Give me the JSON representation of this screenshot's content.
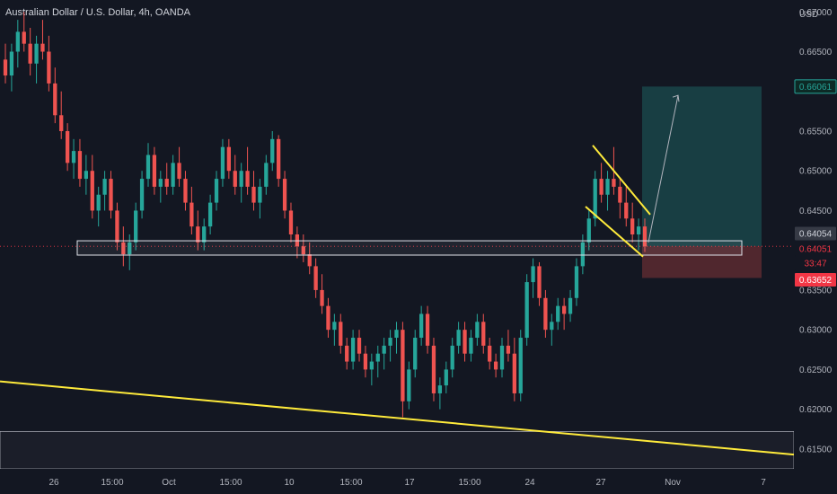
{
  "chart_data": {
    "type": "candlestick",
    "title": "Australian Dollar / U.S. Dollar, 4h, OANDA",
    "currency_label": "USD",
    "y_range": [
      0.6125,
      0.6715
    ],
    "y_ticks": [
      "0.67000",
      "0.66500",
      "0.65500",
      "0.65000",
      "0.64500",
      "0.63500",
      "0.63000",
      "0.62500",
      "0.62000",
      "0.61500"
    ],
    "x_ticks": [
      "26",
      "15:00",
      "Oct",
      "15:00",
      "10",
      "15:00",
      "17",
      "15:00",
      "24",
      "27",
      "Nov",
      "7"
    ],
    "price_badges": [
      {
        "label": "0.66061",
        "kind": "target",
        "color": "#26a69a"
      },
      {
        "label": "0.64054",
        "kind": "last-close",
        "color": "#d1d4dc"
      },
      {
        "label": "0.64051",
        "kind": "current",
        "color": "#f23645"
      },
      {
        "label": "33:47",
        "kind": "countdown",
        "color": "#f23645"
      },
      {
        "label": "0.63652",
        "kind": "stop",
        "color": "#f23645"
      }
    ],
    "colors": {
      "up": "#26a69a",
      "down": "#ef5350",
      "trendline": "#ffeb3b",
      "background": "#131722"
    },
    "annotations": {
      "support_zone": {
        "top": 0.6412,
        "bottom": 0.6394
      },
      "lower_zone": {
        "top": 0.6172,
        "bottom": 0.6125
      },
      "trendline": {
        "start": 0.6235,
        "end": 0.6143
      },
      "falling_wedge": {
        "upper": [
          0.6532,
          0.6445
        ],
        "lower": [
          0.6455,
          0.6392
        ]
      },
      "long_position": {
        "entry": 0.6405,
        "target": 0.66061,
        "stop": 0.63652
      }
    },
    "candles": [
      [
        0.664,
        0.666,
        0.661,
        0.662
      ],
      [
        0.662,
        0.666,
        0.66,
        0.665
      ],
      [
        0.665,
        0.669,
        0.663,
        0.6675
      ],
      [
        0.6675,
        0.67,
        0.665,
        0.666
      ],
      [
        0.666,
        0.668,
        0.662,
        0.6635
      ],
      [
        0.6635,
        0.667,
        0.661,
        0.666
      ],
      [
        0.666,
        0.669,
        0.664,
        0.665
      ],
      [
        0.665,
        0.667,
        0.66,
        0.661
      ],
      [
        0.661,
        0.663,
        0.656,
        0.657
      ],
      [
        0.657,
        0.66,
        0.654,
        0.655
      ],
      [
        0.655,
        0.656,
        0.65,
        0.651
      ],
      [
        0.651,
        0.654,
        0.649,
        0.6525
      ],
      [
        0.6525,
        0.654,
        0.648,
        0.649
      ],
      [
        0.649,
        0.652,
        0.647,
        0.65
      ],
      [
        0.65,
        0.652,
        0.644,
        0.645
      ],
      [
        0.645,
        0.648,
        0.643,
        0.647
      ],
      [
        0.647,
        0.65,
        0.645,
        0.649
      ],
      [
        0.649,
        0.65,
        0.644,
        0.645
      ],
      [
        0.645,
        0.646,
        0.64,
        0.641
      ],
      [
        0.641,
        0.643,
        0.638,
        0.6395
      ],
      [
        0.6395,
        0.642,
        0.6375,
        0.641
      ],
      [
        0.641,
        0.646,
        0.64,
        0.645
      ],
      [
        0.645,
        0.65,
        0.644,
        0.649
      ],
      [
        0.649,
        0.6535,
        0.648,
        0.652
      ],
      [
        0.652,
        0.653,
        0.647,
        0.648
      ],
      [
        0.648,
        0.65,
        0.646,
        0.649
      ],
      [
        0.649,
        0.651,
        0.647,
        0.648
      ],
      [
        0.648,
        0.652,
        0.647,
        0.651
      ],
      [
        0.651,
        0.653,
        0.648,
        0.649
      ],
      [
        0.649,
        0.65,
        0.645,
        0.646
      ],
      [
        0.646,
        0.648,
        0.642,
        0.643
      ],
      [
        0.643,
        0.645,
        0.64,
        0.641
      ],
      [
        0.641,
        0.644,
        0.64,
        0.643
      ],
      [
        0.643,
        0.647,
        0.642,
        0.646
      ],
      [
        0.646,
        0.65,
        0.645,
        0.649
      ],
      [
        0.649,
        0.654,
        0.648,
        0.653
      ],
      [
        0.653,
        0.654,
        0.649,
        0.65
      ],
      [
        0.65,
        0.652,
        0.647,
        0.648
      ],
      [
        0.648,
        0.651,
        0.646,
        0.65
      ],
      [
        0.65,
        0.653,
        0.647,
        0.648
      ],
      [
        0.648,
        0.65,
        0.645,
        0.646
      ],
      [
        0.646,
        0.649,
        0.644,
        0.648
      ],
      [
        0.648,
        0.652,
        0.647,
        0.651
      ],
      [
        0.651,
        0.655,
        0.65,
        0.654
      ],
      [
        0.654,
        0.6545,
        0.648,
        0.649
      ],
      [
        0.649,
        0.65,
        0.644,
        0.645
      ],
      [
        0.645,
        0.646,
        0.641,
        0.642
      ],
      [
        0.642,
        0.643,
        0.639,
        0.6405
      ],
      [
        0.6405,
        0.642,
        0.6385,
        0.6395
      ],
      [
        0.6395,
        0.641,
        0.637,
        0.638
      ],
      [
        0.638,
        0.639,
        0.634,
        0.635
      ],
      [
        0.635,
        0.637,
        0.632,
        0.633
      ],
      [
        0.633,
        0.634,
        0.629,
        0.63
      ],
      [
        0.63,
        0.632,
        0.628,
        0.631
      ],
      [
        0.631,
        0.632,
        0.627,
        0.628
      ],
      [
        0.628,
        0.629,
        0.625,
        0.626
      ],
      [
        0.626,
        0.63,
        0.625,
        0.629
      ],
      [
        0.629,
        0.63,
        0.626,
        0.627
      ],
      [
        0.627,
        0.628,
        0.624,
        0.625
      ],
      [
        0.625,
        0.627,
        0.623,
        0.626
      ],
      [
        0.626,
        0.628,
        0.624,
        0.627
      ],
      [
        0.627,
        0.629,
        0.625,
        0.628
      ],
      [
        0.628,
        0.63,
        0.626,
        0.629
      ],
      [
        0.629,
        0.631,
        0.627,
        0.63
      ],
      [
        0.63,
        0.631,
        0.619,
        0.621
      ],
      [
        0.621,
        0.626,
        0.62,
        0.625
      ],
      [
        0.625,
        0.63,
        0.624,
        0.629
      ],
      [
        0.629,
        0.633,
        0.628,
        0.632
      ],
      [
        0.632,
        0.633,
        0.627,
        0.628
      ],
      [
        0.628,
        0.629,
        0.621,
        0.622
      ],
      [
        0.622,
        0.624,
        0.62,
        0.623
      ],
      [
        0.623,
        0.626,
        0.622,
        0.625
      ],
      [
        0.625,
        0.629,
        0.624,
        0.628
      ],
      [
        0.628,
        0.631,
        0.627,
        0.63
      ],
      [
        0.63,
        0.631,
        0.626,
        0.627
      ],
      [
        0.627,
        0.63,
        0.626,
        0.629
      ],
      [
        0.629,
        0.632,
        0.628,
        0.631
      ],
      [
        0.631,
        0.632,
        0.627,
        0.628
      ],
      [
        0.628,
        0.629,
        0.625,
        0.626
      ],
      [
        0.626,
        0.627,
        0.624,
        0.625
      ],
      [
        0.625,
        0.629,
        0.624,
        0.628
      ],
      [
        0.628,
        0.63,
        0.626,
        0.627
      ],
      [
        0.627,
        0.629,
        0.621,
        0.622
      ],
      [
        0.622,
        0.63,
        0.621,
        0.629
      ],
      [
        0.629,
        0.637,
        0.628,
        0.636
      ],
      [
        0.636,
        0.639,
        0.634,
        0.638
      ],
      [
        0.638,
        0.6385,
        0.633,
        0.634
      ],
      [
        0.634,
        0.635,
        0.629,
        0.63
      ],
      [
        0.63,
        0.632,
        0.628,
        0.631
      ],
      [
        0.631,
        0.634,
        0.63,
        0.633
      ],
      [
        0.633,
        0.634,
        0.63,
        0.632
      ],
      [
        0.632,
        0.635,
        0.631,
        0.634
      ],
      [
        0.634,
        0.639,
        0.633,
        0.638
      ],
      [
        0.638,
        0.642,
        0.637,
        0.641
      ],
      [
        0.641,
        0.645,
        0.64,
        0.644
      ],
      [
        0.644,
        0.65,
        0.643,
        0.649
      ],
      [
        0.649,
        0.651,
        0.646,
        0.647
      ],
      [
        0.647,
        0.65,
        0.645,
        0.649
      ],
      [
        0.649,
        0.653,
        0.647,
        0.648
      ],
      [
        0.648,
        0.649,
        0.644,
        0.646
      ],
      [
        0.646,
        0.648,
        0.643,
        0.644
      ],
      [
        0.644,
        0.646,
        0.641,
        0.642
      ],
      [
        0.642,
        0.644,
        0.64,
        0.643
      ],
      [
        0.643,
        0.644,
        0.6398,
        0.6405
      ]
    ]
  }
}
